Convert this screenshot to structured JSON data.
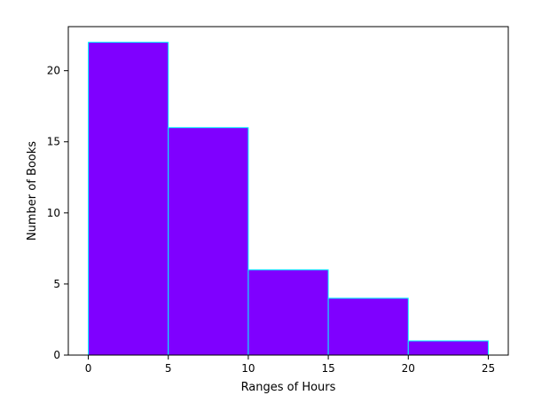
{
  "chart_data": {
    "type": "bar",
    "subtype": "histogram",
    "bins": [
      {
        "start": 0,
        "end": 5,
        "count": 22
      },
      {
        "start": 5,
        "end": 10,
        "count": 16
      },
      {
        "start": 10,
        "end": 15,
        "count": 6
      },
      {
        "start": 15,
        "end": 20,
        "count": 4
      },
      {
        "start": 20,
        "end": 25,
        "count": 1
      }
    ],
    "xlabel": "Ranges of Hours",
    "ylabel": "Number of Books",
    "xlim": [
      -1.25,
      26.25
    ],
    "ylim": [
      0,
      23.1
    ],
    "xticks": [
      0,
      5,
      10,
      15,
      20,
      25
    ],
    "yticks": [
      0,
      5,
      10,
      15,
      20
    ],
    "grid": false,
    "colors": {
      "bar_fill": "#7f00ff",
      "bar_edge": "#00ffff"
    }
  }
}
